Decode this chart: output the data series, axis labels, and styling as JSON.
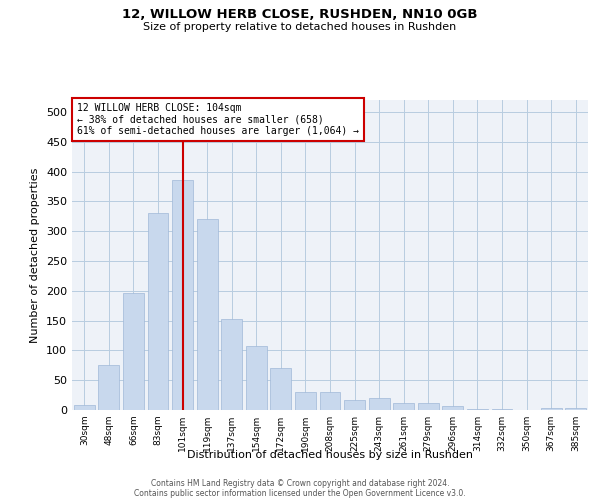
{
  "title": "12, WILLOW HERB CLOSE, RUSHDEN, NN10 0GB",
  "subtitle": "Size of property relative to detached houses in Rushden",
  "xlabel": "Distribution of detached houses by size in Rushden",
  "ylabel": "Number of detached properties",
  "footer1": "Contains HM Land Registry data © Crown copyright and database right 2024.",
  "footer2": "Contains public sector information licensed under the Open Government Licence v3.0.",
  "property_label": "12 WILLOW HERB CLOSE: 104sqm",
  "annotation_line1": "← 38% of detached houses are smaller (658)",
  "annotation_line2": "61% of semi-detached houses are larger (1,064) →",
  "bar_color": "#c8d8ed",
  "bar_edge_color": "#a0b8d8",
  "vline_color": "#cc0000",
  "annotation_box_edgecolor": "#cc0000",
  "grid_color": "#b8cce0",
  "background_color": "#eef2f8",
  "categories": [
    "30sqm",
    "48sqm",
    "66sqm",
    "83sqm",
    "101sqm",
    "119sqm",
    "137sqm",
    "154sqm",
    "172sqm",
    "190sqm",
    "208sqm",
    "225sqm",
    "243sqm",
    "261sqm",
    "279sqm",
    "296sqm",
    "314sqm",
    "332sqm",
    "350sqm",
    "367sqm",
    "385sqm"
  ],
  "values": [
    8,
    75,
    197,
    330,
    385,
    320,
    152,
    108,
    70,
    30,
    30,
    17,
    20,
    11,
    11,
    6,
    2,
    1,
    0,
    4,
    4
  ],
  "ylim": [
    0,
    520
  ],
  "yticks": [
    0,
    50,
    100,
    150,
    200,
    250,
    300,
    350,
    400,
    450,
    500
  ],
  "vline_x_index": 4
}
